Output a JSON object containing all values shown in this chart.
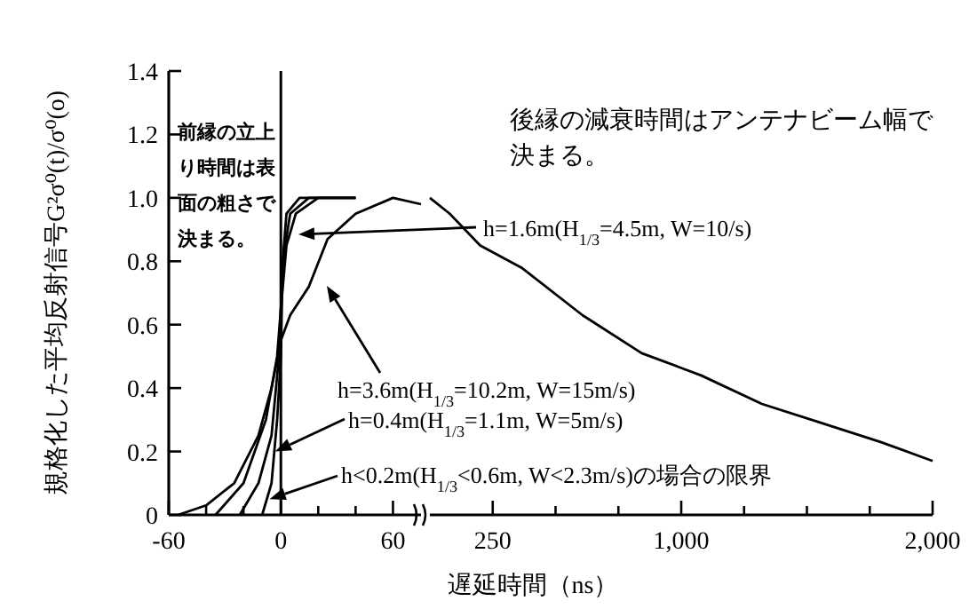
{
  "chart_data": [
    {
      "type": "line",
      "ylabel": "規格化した平均反射信号G²σ⁰(t)/σ⁰(o)",
      "xlim": [
        -60,
        75
      ],
      "ylim": [
        0,
        1.4
      ],
      "xticks": [
        -60,
        {
          "value": -40,
          "label": null
        },
        {
          "value": -20,
          "label": null
        },
        0,
        {
          "value": 20,
          "label": null
        },
        {
          "value": 40,
          "label": null
        },
        60
      ],
      "yticks": [
        0,
        0.2,
        0.4,
        0.6,
        0.8,
        {
          "value": 1,
          "label": "1.0"
        },
        1.2,
        1.4
      ],
      "ref_lines": [
        {
          "axis": "x",
          "value": 0,
          "color": "#000000"
        }
      ],
      "series": [
        {
          "color": "#000000",
          "x": [
            -55,
            -40,
            -25,
            -12,
            -5,
            0,
            5,
            15,
            25,
            40,
            60,
            75
          ],
          "values": [
            0,
            0.03,
            0.1,
            0.25,
            0.4,
            0.55,
            0.63,
            0.72,
            0.87,
            0.95,
            1.0,
            0.98
          ]
        },
        {
          "color": "#000000",
          "x": [
            -35,
            -20,
            -8,
            -2,
            0,
            3,
            8,
            20,
            40
          ],
          "values": [
            0,
            0.1,
            0.3,
            0.5,
            0.65,
            0.85,
            0.95,
            1.0,
            1.0
          ]
        },
        {
          "color": "#000000",
          "x": [
            -22,
            -12,
            -5,
            -1,
            1,
            5,
            15,
            40
          ],
          "values": [
            0,
            0.1,
            0.25,
            0.5,
            0.8,
            0.95,
            1.0,
            1.0
          ]
        },
        {
          "color": "#000000",
          "x": [
            -10,
            -5,
            -2,
            0,
            1,
            3,
            10,
            40
          ],
          "values": [
            0,
            0.1,
            0.3,
            0.5,
            0.8,
            0.95,
            1.0,
            1.0
          ]
        }
      ],
      "annotations": [
        "前縁の立上り時間は表面の粗さで決まる。",
        "h=1.6m(H$_{1/3}$=4.5m, W=10/s)",
        "h=3.6m(H$_{1/3}$=10.2m, W=15m/s)",
        {
          "text": "h=0.4m(H$_{1/3}$=1.1m, W=5m/s)",
          "x": -3,
          "y": 0.2
        },
        {
          "text": "h<0.2m(H$_{1/3}$<0.6m, W<2.3m/s)の場合の限界",
          "x": -6,
          "y": 0.05
        }
      ]
    },
    {
      "type": "line",
      "xlabel": "遅延時間（ns）",
      "tick_labels": "x",
      "xlim": [
        0,
        2000
      ],
      "ylim": [
        0,
        1.4
      ],
      "xticks": [
        250,
        {
          "value": 500,
          "label": null
        },
        {
          "value": 750,
          "label": null
        },
        {
          "value": 1000,
          "label": "1,000"
        },
        {
          "value": 1250,
          "label": null
        },
        {
          "value": 1500,
          "label": null
        },
        {
          "value": 1750,
          "label": null
        },
        {
          "value": 2000,
          "label": "2,000"
        }
      ],
      "series": [
        {
          "color": "#000000",
          "x": [
            0,
            79,
            200,
            364,
            607,
            843,
            1079,
            1321,
            1557,
            1793,
            2000
          ],
          "values": [
            1.0,
            0.95,
            0.85,
            0.78,
            0.63,
            0.51,
            0.44,
            0.35,
            0.29,
            0.23,
            0.17
          ]
        }
      ],
      "annotations": [
        "後縁の減衰時間はアンテナビーム幅で決まる。"
      ]
    }
  ]
}
